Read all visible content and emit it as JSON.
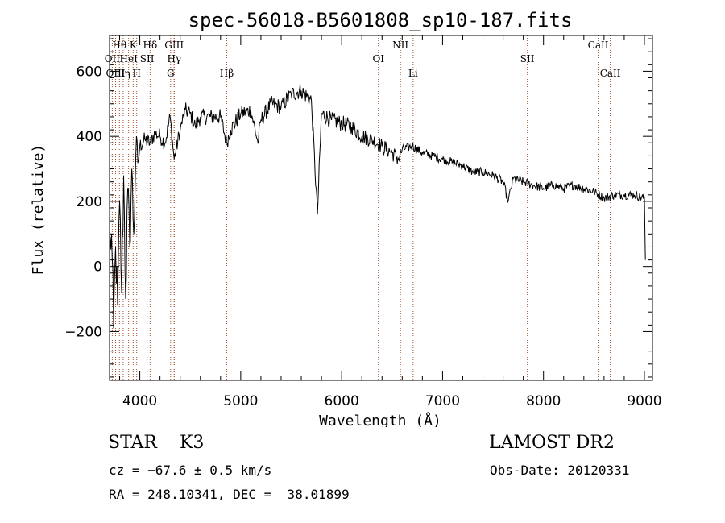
{
  "chart_data": {
    "type": "line",
    "title": "spec-56018-B5601808_sp10-187.fits",
    "xlabel": "Wavelength (Å)",
    "ylabel": "Flux (relative)",
    "xlim": [
      3700,
      9080
    ],
    "ylim": [
      -350,
      710
    ],
    "xticks": [
      4000,
      5000,
      6000,
      7000,
      8000,
      9000
    ],
    "xtick_labels": [
      "4000",
      "5000",
      "6000",
      "7000",
      "8000",
      "9000"
    ],
    "yticks": [
      -200,
      0,
      200,
      400,
      600
    ],
    "ytick_labels": [
      "−200",
      "0",
      "200",
      "400",
      "600"
    ],
    "grid": false,
    "legend": "none",
    "line_color": "#000000",
    "marker_color": "#a0522d",
    "series": [
      {
        "x": [
          3700,
          3720,
          3740,
          3760,
          3780,
          3800,
          3820,
          3840,
          3860,
          3880,
          3900,
          3920,
          3940,
          3960,
          3980,
          4000,
          4050,
          4100,
          4150,
          4200,
          4250,
          4300,
          4340,
          4400,
          4450,
          4500,
          4550,
          4600,
          4700,
          4800,
          4860,
          4900,
          5000,
          5100,
          5170,
          5200,
          5300,
          5400,
          5500,
          5600,
          5700,
          5760,
          5800,
          5900,
          6000,
          6100,
          6200,
          6300,
          6400,
          6500,
          6563,
          6600,
          6700,
          6800,
          6900,
          7000,
          7100,
          7200,
          7300,
          7400,
          7500,
          7600,
          7650,
          7700,
          7800,
          7900,
          8000,
          8100,
          8200,
          8300,
          8400,
          8500,
          8600,
          8700,
          8800,
          8900,
          9000,
          9010
        ],
        "y": [
          50,
          100,
          -190,
          60,
          -120,
          200,
          -80,
          280,
          -100,
          240,
          60,
          300,
          100,
          340,
          320,
          370,
          390,
          380,
          410,
          400,
          380,
          460,
          330,
          420,
          480,
          470,
          430,
          460,
          460,
          460,
          380,
          420,
          470,
          480,
          380,
          450,
          500,
          490,
          530,
          540,
          510,
          160,
          470,
          450,
          440,
          430,
          400,
          390,
          370,
          350,
          330,
          360,
          370,
          350,
          340,
          330,
          320,
          310,
          290,
          290,
          280,
          260,
          200,
          270,
          260,
          250,
          240,
          250,
          240,
          250,
          240,
          230,
          210,
          220,
          220,
          220,
          210,
          20
        ]
      }
    ],
    "line_markers": [
      {
        "label": "Hθ",
        "x": 3798,
        "row": 1
      },
      {
        "label": "K",
        "x": 3934,
        "row": 1
      },
      {
        "label": "Hδ",
        "x": 4102,
        "row": 1
      },
      {
        "label": "OII",
        "x": 3727,
        "row": 2
      },
      {
        "label": "HeI",
        "x": 3889,
        "row": 2
      },
      {
        "label": "SII",
        "x": 4072,
        "row": 2
      },
      {
        "label": "OIII",
        "x": 3760,
        "row": 3
      },
      {
        "label": "Hη",
        "x": 3835,
        "row": 3
      },
      {
        "label": "H",
        "x": 3969,
        "row": 3
      },
      {
        "label": "GIII",
        "x": 4340,
        "row": 1
      },
      {
        "label": "Hγ",
        "x": 4341,
        "row": 2
      },
      {
        "label": "G",
        "x": 4305,
        "row": 3
      },
      {
        "label": "Hβ",
        "x": 4861,
        "row": 3
      },
      {
        "label": "OI",
        "x": 6364,
        "row": 2
      },
      {
        "label": "NII",
        "x": 6583,
        "row": 1
      },
      {
        "label": "Li",
        "x": 6708,
        "row": 3
      },
      {
        "label": "SII",
        "x": 7840,
        "row": 2
      },
      {
        "label": "CaII",
        "x": 8542,
        "row": 1
      },
      {
        "label": "CaII",
        "x": 8662,
        "row": 3
      }
    ]
  },
  "info": {
    "spectral_class": "STAR    K3",
    "survey": "LAMOST DR2",
    "cz": "cz = −67.6 ± 0.5 km/s",
    "obs_date": "Obs-Date: 20120331",
    "radec": "RA = 248.10341, DEC =  38.01899"
  }
}
